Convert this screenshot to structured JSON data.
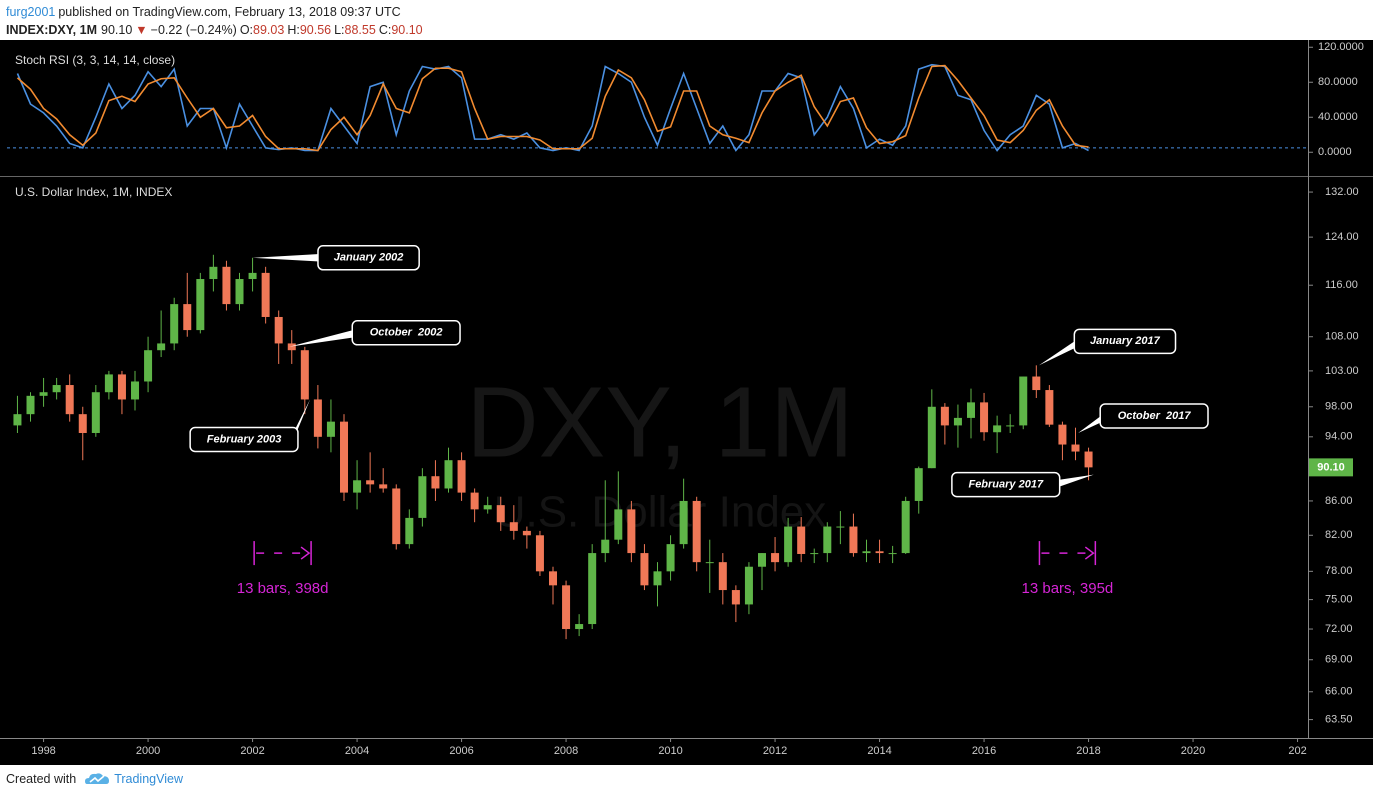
{
  "header": {
    "author": "furg2001",
    "published": "published on TradingView.com, February 13, 2018 09:37 UTC",
    "symbol": "INDEX:DXY, 1M",
    "price": "90.10",
    "arrow": "▼",
    "change": "−0.22 (−0.24%)",
    "ohlc": [
      {
        "key": "O:",
        "value": "89.03"
      },
      {
        "key": "H:",
        "value": "90.56"
      },
      {
        "key": "L:",
        "value": "88.55"
      },
      {
        "key": "C:",
        "value": "90.10"
      }
    ]
  },
  "footer": {
    "created": "Created with",
    "brand": "TradingView"
  },
  "chart_data": [
    {
      "type": "line",
      "title": "Stoch RSI (3, 3, 14, 14, close)",
      "x": [
        1997.5,
        1997.75,
        1998,
        1998.25,
        1998.5,
        1998.75,
        1999,
        1999.25,
        1999.5,
        1999.75,
        2000,
        2000.25,
        2000.5,
        2000.75,
        2001,
        2001.25,
        2001.5,
        2001.75,
        2002,
        2002.25,
        2002.5,
        2002.75,
        2003,
        2003.25,
        2003.5,
        2003.75,
        2004,
        2004.25,
        2004.5,
        2004.75,
        2005,
        2005.25,
        2005.5,
        2005.75,
        2006,
        2006.25,
        2006.5,
        2006.75,
        2007,
        2007.25,
        2007.5,
        2007.75,
        2008,
        2008.25,
        2008.5,
        2008.75,
        2009,
        2009.25,
        2009.5,
        2009.75,
        2010,
        2010.25,
        2010.5,
        2010.75,
        2011,
        2011.25,
        2011.5,
        2011.75,
        2012,
        2012.25,
        2012.5,
        2012.75,
        2013,
        2013.25,
        2013.5,
        2013.75,
        2014,
        2014.25,
        2014.5,
        2014.75,
        2015,
        2015.25,
        2015.5,
        2015.75,
        2016,
        2016.25,
        2016.5,
        2016.75,
        2017,
        2017.25,
        2017.5,
        2017.75,
        2018
      ],
      "series": [
        {
          "color": "#4a90e2",
          "values": [
            90,
            55,
            45,
            30,
            10,
            5,
            40,
            78,
            50,
            65,
            92,
            75,
            95,
            30,
            50,
            50,
            5,
            55,
            30,
            5,
            3,
            5,
            2,
            2,
            50,
            30,
            10,
            75,
            80,
            20,
            70,
            98,
            95,
            98,
            85,
            15,
            15,
            20,
            15,
            22,
            5,
            2,
            5,
            2,
            30,
            98,
            90,
            80,
            40,
            8,
            50,
            90,
            50,
            10,
            30,
            2,
            20,
            70,
            70,
            90,
            85,
            20,
            40,
            75,
            50,
            5,
            15,
            8,
            30,
            95,
            100,
            98,
            65,
            60,
            25,
            2,
            20,
            30,
            65,
            55,
            5,
            10,
            2
          ]
        },
        {
          "color": "#f28b30",
          "values": [
            85,
            72,
            50,
            38,
            20,
            8,
            22,
            59,
            64,
            58,
            78,
            84,
            85,
            62,
            40,
            50,
            28,
            30,
            42,
            18,
            4,
            4,
            4,
            2,
            26,
            40,
            20,
            42,
            78,
            50,
            45,
            84,
            96,
            96,
            92,
            50,
            15,
            18,
            18,
            18,
            14,
            4,
            4,
            4,
            16,
            64,
            94,
            85,
            60,
            24,
            29,
            70,
            70,
            30,
            20,
            16,
            11,
            45,
            70,
            80,
            88,
            52,
            30,
            58,
            62,
            28,
            10,
            12,
            19,
            62,
            98,
            99,
            82,
            62,
            42,
            14,
            11,
            25,
            48,
            60,
            30,
            8,
            6
          ]
        }
      ],
      "ylim": [
        -26,
        126
      ],
      "yticks": [
        {
          "value": 0,
          "label": "0.0000"
        },
        {
          "value": 40,
          "label": "40.0000"
        },
        {
          "value": 80,
          "label": "80.0000"
        },
        {
          "value": 120,
          "label": "120.0000"
        }
      ],
      "hline": 5,
      "xlim": [
        1997.3,
        2022.2
      ]
    },
    {
      "type": "candlestick",
      "title": "U.S. Dollar Index, 1M, INDEX",
      "watermark": "DXY, 1M",
      "watermark_subtitle": "U.S. Dollar Index",
      "x": [
        1997.5,
        1997.75,
        1998,
        1998.25,
        1998.5,
        1998.75,
        1999,
        1999.25,
        1999.5,
        1999.75,
        2000,
        2000.25,
        2000.5,
        2000.75,
        2001,
        2001.25,
        2001.5,
        2001.75,
        2002,
        2002.25,
        2002.5,
        2002.75,
        2003,
        2003.25,
        2003.5,
        2003.75,
        2004,
        2004.25,
        2004.5,
        2004.75,
        2005,
        2005.25,
        2005.5,
        2005.75,
        2006,
        2006.25,
        2006.5,
        2006.75,
        2007,
        2007.25,
        2007.5,
        2007.75,
        2008,
        2008.25,
        2008.5,
        2008.75,
        2009,
        2009.25,
        2009.5,
        2009.75,
        2010,
        2010.25,
        2010.5,
        2010.75,
        2011,
        2011.25,
        2011.5,
        2011.75,
        2012,
        2012.25,
        2012.5,
        2012.75,
        2013,
        2013.25,
        2013.5,
        2013.75,
        2014,
        2014.25,
        2014.5,
        2014.75,
        2015,
        2015.25,
        2015.5,
        2015.75,
        2016,
        2016.25,
        2016.5,
        2016.75,
        2017,
        2017.25,
        2017.5,
        2017.75,
        2018
      ],
      "open": [
        95.5,
        97,
        99.5,
        100,
        101,
        97,
        94.5,
        100,
        102.5,
        99,
        101.5,
        106,
        107,
        113,
        109,
        117,
        119,
        113,
        117,
        118,
        111,
        107,
        106,
        99,
        94,
        96,
        87,
        88.5,
        88,
        87.5,
        81,
        84,
        89,
        87.5,
        91,
        87,
        85,
        85.5,
        83.5,
        82.5,
        82,
        78,
        76.5,
        72,
        72.5,
        80,
        81.5,
        85,
        80,
        76.5,
        78,
        81,
        86,
        79,
        79,
        76,
        74.5,
        78.5,
        80,
        79,
        83,
        79.9,
        80,
        83,
        83,
        80,
        80.2,
        80,
        80,
        86,
        90,
        98,
        95.5,
        96.5,
        98.6,
        94.6,
        95.5,
        95.5,
        102.2,
        100.3,
        95.6,
        93,
        92.1
      ],
      "high": [
        99.5,
        100,
        102,
        102,
        102.5,
        98,
        101,
        103,
        103,
        103,
        108,
        112,
        114,
        118,
        118,
        121,
        120,
        118,
        120.5,
        119,
        112,
        109,
        106.5,
        101,
        99,
        97,
        91,
        92,
        90,
        88,
        85,
        90,
        91,
        92.6,
        92,
        87.5,
        86.5,
        86.5,
        85.5,
        83,
        82.5,
        78.5,
        77,
        73.5,
        81,
        88.5,
        89.6,
        86,
        81,
        79,
        82,
        88.7,
        86.5,
        81.5,
        80,
        76.5,
        79,
        80,
        81.8,
        84,
        84.1,
        80.5,
        83.5,
        84.8,
        84.5,
        81.5,
        81.5,
        80.8,
        86.5,
        90.2,
        100.4,
        98.5,
        98.3,
        100.5,
        99.9,
        96.8,
        97,
        102.2,
        103.8,
        101,
        96,
        95.2,
        92.6
      ],
      "low": [
        94.5,
        96,
        98,
        99,
        96,
        91,
        94,
        99,
        97,
        97.5,
        100,
        105,
        106,
        108,
        108.5,
        115,
        112,
        112,
        115,
        110,
        104,
        104,
        97,
        92.5,
        92,
        86,
        85,
        87,
        87,
        80.4,
        80.5,
        83,
        86,
        87,
        86,
        83.5,
        84.5,
        82.5,
        81.5,
        80.5,
        77.5,
        74.5,
        71,
        71.3,
        72,
        79,
        81,
        79,
        76,
        74.3,
        77,
        80.5,
        78,
        75.7,
        74.5,
        72.7,
        73.5,
        76,
        78,
        78.5,
        79,
        78.9,
        79,
        81,
        79.6,
        79,
        78.9,
        78.9,
        79.9,
        84.5,
        90,
        93,
        92.6,
        93.8,
        93.5,
        91.9,
        94.5,
        95,
        99.2,
        95.3,
        91,
        91,
        88.5
      ],
      "close": [
        97,
        99.5,
        100,
        101,
        97,
        94.5,
        100,
        102.5,
        99,
        101.5,
        106,
        107,
        113,
        109,
        117,
        119,
        113,
        117,
        118,
        111,
        107,
        106,
        99,
        94,
        96,
        87,
        88.5,
        88,
        87.5,
        81,
        84,
        89,
        87.5,
        91,
        87,
        85,
        85.5,
        83.5,
        82.5,
        82,
        78,
        76.5,
        72,
        72.5,
        80,
        81.5,
        85,
        80,
        76.5,
        78,
        81,
        86,
        79,
        79,
        76,
        74.5,
        78.5,
        80,
        79,
        83,
        79.9,
        80,
        83,
        83,
        80,
        80.2,
        80,
        80,
        86,
        90,
        98,
        95.5,
        96.5,
        98.6,
        94.6,
        95.5,
        95.5,
        102.2,
        100.3,
        95.6,
        93,
        92.1,
        90.1
      ],
      "up_color": "#5fb548",
      "down_color": "#f07857",
      "log": true,
      "ylim": [
        61.9,
        134.6
      ],
      "yticks": [
        {
          "value": 63.5,
          "label": "63.50"
        },
        {
          "value": 66,
          "label": "66.00"
        },
        {
          "value": 69,
          "label": "69.00"
        },
        {
          "value": 72,
          "label": "72.00"
        },
        {
          "value": 75,
          "label": "75.00"
        },
        {
          "value": 78,
          "label": "78.00"
        },
        {
          "value": 82,
          "label": "82.00"
        },
        {
          "value": 86,
          "label": "86.00"
        },
        {
          "value": 90,
          "label": "90.00"
        },
        {
          "value": 94,
          "label": "94.00"
        },
        {
          "value": 98,
          "label": "98.00"
        },
        {
          "value": 103,
          "label": "103.00"
        },
        {
          "value": 108,
          "label": "108.00"
        },
        {
          "value": 116,
          "label": "116.00"
        },
        {
          "value": 124,
          "label": "124.00"
        },
        {
          "value": 132,
          "label": "132.00"
        }
      ],
      "xlim": [
        1997.3,
        2022.2
      ],
      "xticks": [
        1998,
        2000,
        2002,
        2004,
        2006,
        2008,
        2010,
        2012,
        2014,
        2016,
        2018,
        2020,
        {
          "value": 2022,
          "label": "202"
        }
      ],
      "last_price": {
        "value": 90.1,
        "label": "90.10"
      },
      "annotations": [
        {
          "text": "January 2002",
          "x": 2002,
          "y": 120.5
        },
        {
          "text": "October  2002",
          "x": 2002.7,
          "y": 106.5
        },
        {
          "text": "February 2003",
          "x": 2003.1,
          "y": 99
        },
        {
          "text": "January 2017",
          "x": 2017.05,
          "y": 103.8
        },
        {
          "text": "October  2017",
          "x": 2017.8,
          "y": 94.5
        },
        {
          "text": "February 2017",
          "x": 2018.1,
          "y": 89.2
        }
      ],
      "measures": [
        {
          "label": "13 bars, 398d",
          "x0": 2002.03,
          "x1": 2003.12,
          "y": 80
        },
        {
          "label": "13 bars, 395d",
          "x0": 2017.06,
          "x1": 2018.13,
          "y": 80
        }
      ]
    }
  ]
}
